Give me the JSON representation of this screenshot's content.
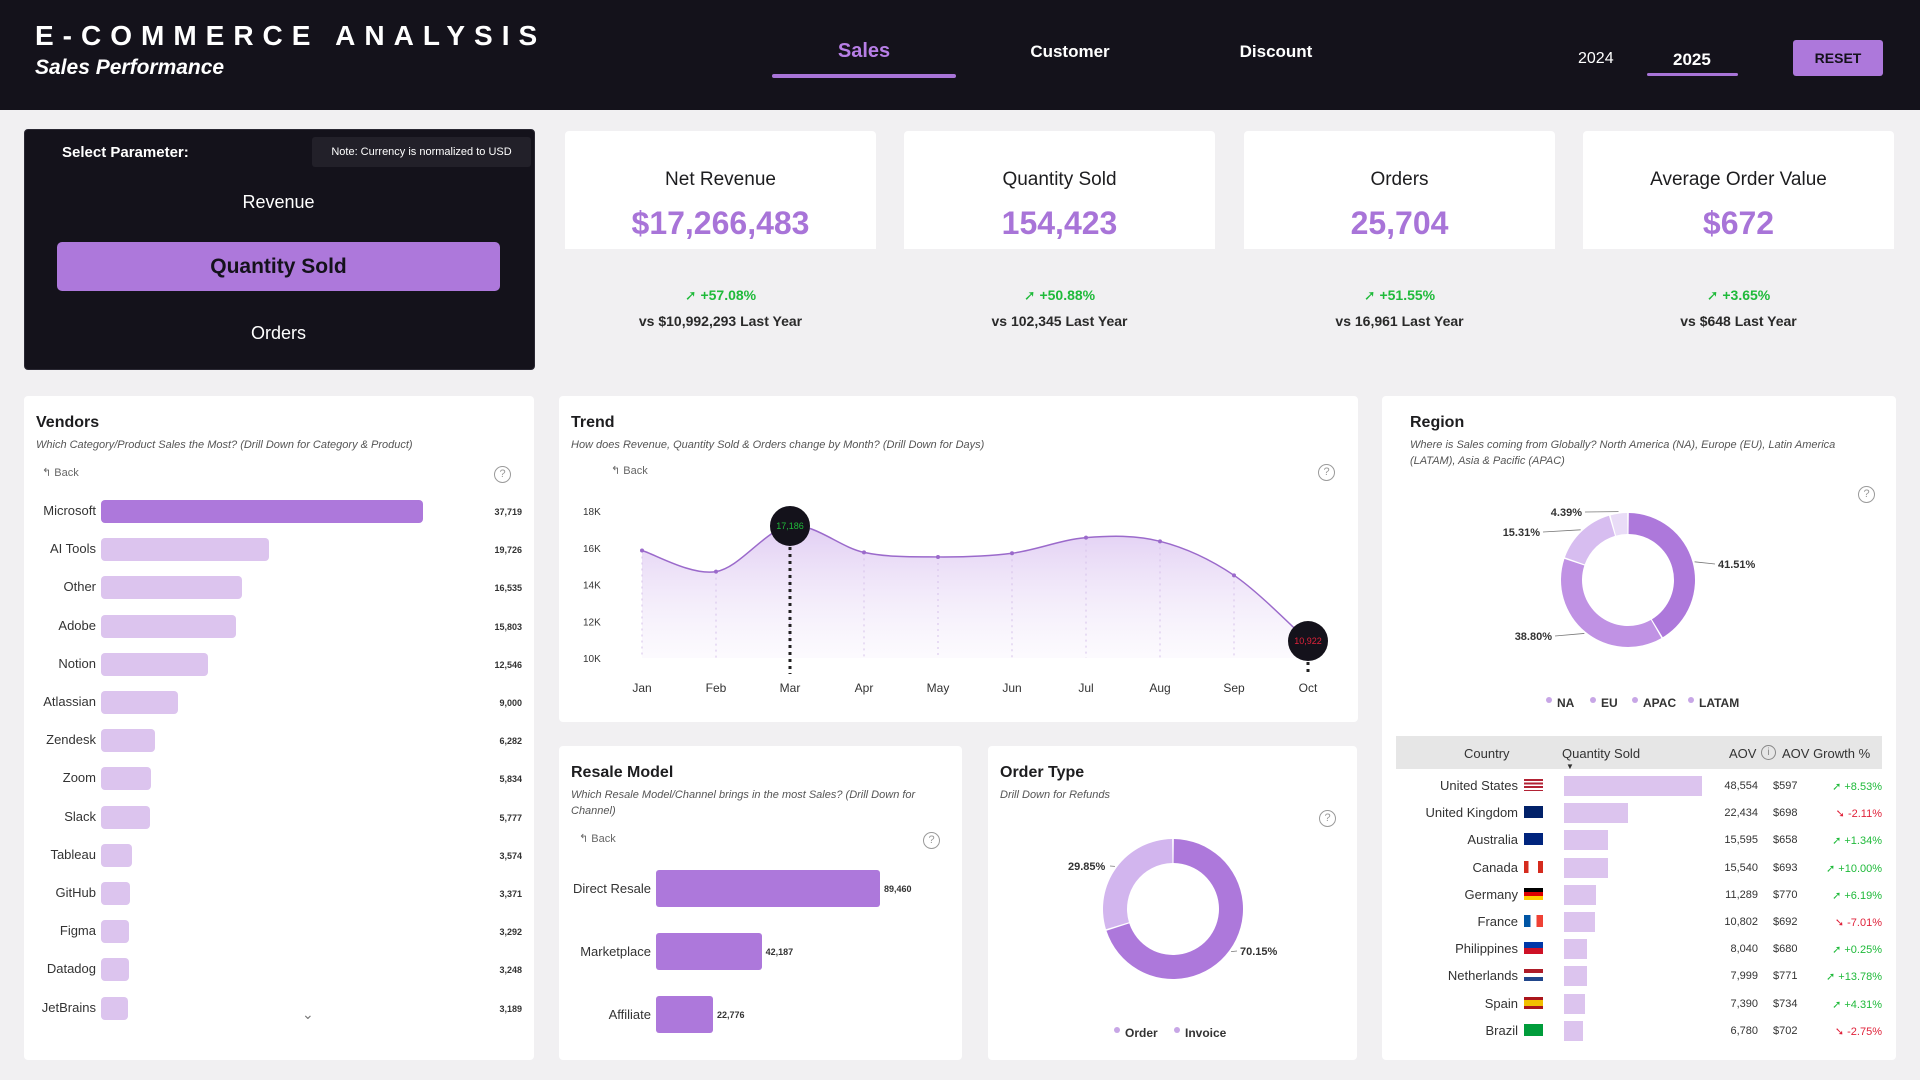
{
  "header": {
    "title": "E-COMMERCE ANALYSIS",
    "subtitle": "Sales Performance",
    "tabs": [
      "Sales",
      "Customer",
      "Discount"
    ],
    "active_tab": "Sales",
    "years": [
      "2024",
      "2025"
    ],
    "active_year": "2025",
    "reset_label": "RESET"
  },
  "parameter": {
    "label": "Select Parameter:",
    "note": "Note: Currency is normalized to USD",
    "options": [
      "Revenue",
      "Quantity Sold",
      "Orders"
    ],
    "selected": "Quantity Sold"
  },
  "kpis": [
    {
      "title": "Net Revenue",
      "value": "$17,266,483",
      "change": "+57.08%",
      "prev": "vs $10,992,293 Last Year"
    },
    {
      "title": "Quantity Sold",
      "value": "154,423",
      "change": "+50.88%",
      "prev": "vs 102,345 Last Year"
    },
    {
      "title": "Orders",
      "value": "25,704",
      "change": "+51.55%",
      "prev": "vs 16,961 Last Year"
    },
    {
      "title": "Average Order Value",
      "value": "$672",
      "change": "+3.65%",
      "prev": "vs $648 Last Year"
    }
  ],
  "colors": {
    "accent": "#a874d8",
    "accent_light": "#dcc4ee",
    "header_bg": "#14121b",
    "positive": "#1fba3a",
    "negative": "#e0223a"
  },
  "vendors": {
    "title": "Vendors",
    "subtitle": "Which Category/Product Sales the Most? (Drill Down for Category & Product)",
    "back_label": "Back",
    "chart_data": {
      "type": "bar",
      "categories": [
        "Microsoft",
        "AI Tools",
        "Other",
        "Adobe",
        "Notion",
        "Atlassian",
        "Zendesk",
        "Zoom",
        "Slack",
        "Tableau",
        "GitHub",
        "Figma",
        "Datadog",
        "JetBrains"
      ],
      "values": [
        37719,
        19726,
        16535,
        15803,
        12546,
        9000,
        6282,
        5834,
        5777,
        3574,
        3371,
        3292,
        3248,
        3189
      ],
      "value_labels": [
        "37,719",
        "19,726",
        "16,535",
        "15,803",
        "12,546",
        "9,000",
        "6,282",
        "5,834",
        "5,777",
        "3,574",
        "3,371",
        "3,292",
        "3,248",
        "3,189"
      ],
      "orientation": "horizontal"
    }
  },
  "trend": {
    "title": "Trend",
    "subtitle": "How does Revenue, Quantity Sold & Orders change by Month? (Drill Down for Days)",
    "back_label": "Back",
    "chart_data": {
      "type": "area",
      "x": [
        "Jan",
        "Feb",
        "Mar",
        "Apr",
        "May",
        "Jun",
        "Jul",
        "Aug",
        "Sep",
        "Oct"
      ],
      "y": [
        15850,
        14700,
        17186,
        15750,
        15500,
        15700,
        16550,
        16350,
        14500,
        10922
      ],
      "ylim": [
        10000,
        18000
      ],
      "yticks": [
        "10K",
        "12K",
        "14K",
        "16K",
        "18K"
      ],
      "max_label": "17,186",
      "min_label": "10,922"
    }
  },
  "resale": {
    "title": "Resale Model",
    "subtitle": "Which Resale Model/Channel brings in the most Sales? (Drill Down for Channel)",
    "back_label": "Back",
    "chart_data": {
      "type": "bar",
      "categories": [
        "Direct Resale",
        "Marketplace",
        "Affiliate"
      ],
      "values": [
        89460,
        42187,
        22776
      ],
      "value_labels": [
        "89,460",
        "42,187",
        "22,776"
      ],
      "orientation": "horizontal"
    }
  },
  "order_type": {
    "title": "Order Type",
    "subtitle": "Drill Down for Refunds",
    "chart_data": {
      "type": "pie",
      "labels": [
        "Order",
        "Invoice"
      ],
      "values": [
        70.15,
        29.85
      ],
      "value_labels": [
        "70.15%",
        "29.85%"
      ]
    }
  },
  "region": {
    "title": "Region",
    "subtitle_line1": "Where is Sales coming from Globally? North America (NA), Europe (EU), Latin America",
    "subtitle_line2": "(LATAM), Asia & Pacific (APAC)",
    "chart_data": {
      "type": "pie",
      "labels": [
        "NA",
        "EU",
        "APAC",
        "LATAM"
      ],
      "values": [
        41.51,
        38.8,
        15.31,
        4.39
      ],
      "value_labels": [
        "41.51%",
        "38.80%",
        "15.31%",
        "4.39%"
      ]
    },
    "table": {
      "headers": [
        "Country",
        "Quantity Sold",
        "AOV",
        "AOV Growth %"
      ],
      "rows": [
        {
          "country": "United States",
          "flag": "us",
          "qty": 48554,
          "qty_label": "48,554",
          "aov": "$597",
          "growth": "+8.53%",
          "dir": "pos"
        },
        {
          "country": "United Kingdom",
          "flag": "gb",
          "qty": 22434,
          "qty_label": "22,434",
          "aov": "$698",
          "growth": "-2.11%",
          "dir": "neg"
        },
        {
          "country": "Australia",
          "flag": "au",
          "qty": 15595,
          "qty_label": "15,595",
          "aov": "$658",
          "growth": "+1.34%",
          "dir": "pos"
        },
        {
          "country": "Canada",
          "flag": "ca",
          "qty": 15540,
          "qty_label": "15,540",
          "aov": "$693",
          "growth": "+10.00%",
          "dir": "pos"
        },
        {
          "country": "Germany",
          "flag": "de",
          "qty": 11289,
          "qty_label": "11,289",
          "aov": "$770",
          "growth": "+6.19%",
          "dir": "pos"
        },
        {
          "country": "France",
          "flag": "fr",
          "qty": 10802,
          "qty_label": "10,802",
          "aov": "$692",
          "growth": "-7.01%",
          "dir": "neg"
        },
        {
          "country": "Philippines",
          "flag": "ph",
          "qty": 8040,
          "qty_label": "8,040",
          "aov": "$680",
          "growth": "+0.25%",
          "dir": "pos"
        },
        {
          "country": "Netherlands",
          "flag": "nl",
          "qty": 7999,
          "qty_label": "7,999",
          "aov": "$771",
          "growth": "+13.78%",
          "dir": "pos"
        },
        {
          "country": "Spain",
          "flag": "es",
          "qty": 7390,
          "qty_label": "7,390",
          "aov": "$734",
          "growth": "+4.31%",
          "dir": "pos"
        },
        {
          "country": "Brazil",
          "flag": "br",
          "qty": 6780,
          "qty_label": "6,780",
          "aov": "$702",
          "growth": "-2.75%",
          "dir": "neg"
        }
      ]
    }
  },
  "icons": {
    "back": "back-arrow-icon",
    "help": "help-circle-icon",
    "up": "trend-up-arrow-icon",
    "down": "trend-down-arrow-icon",
    "scroll": "chevron-down-icon"
  }
}
